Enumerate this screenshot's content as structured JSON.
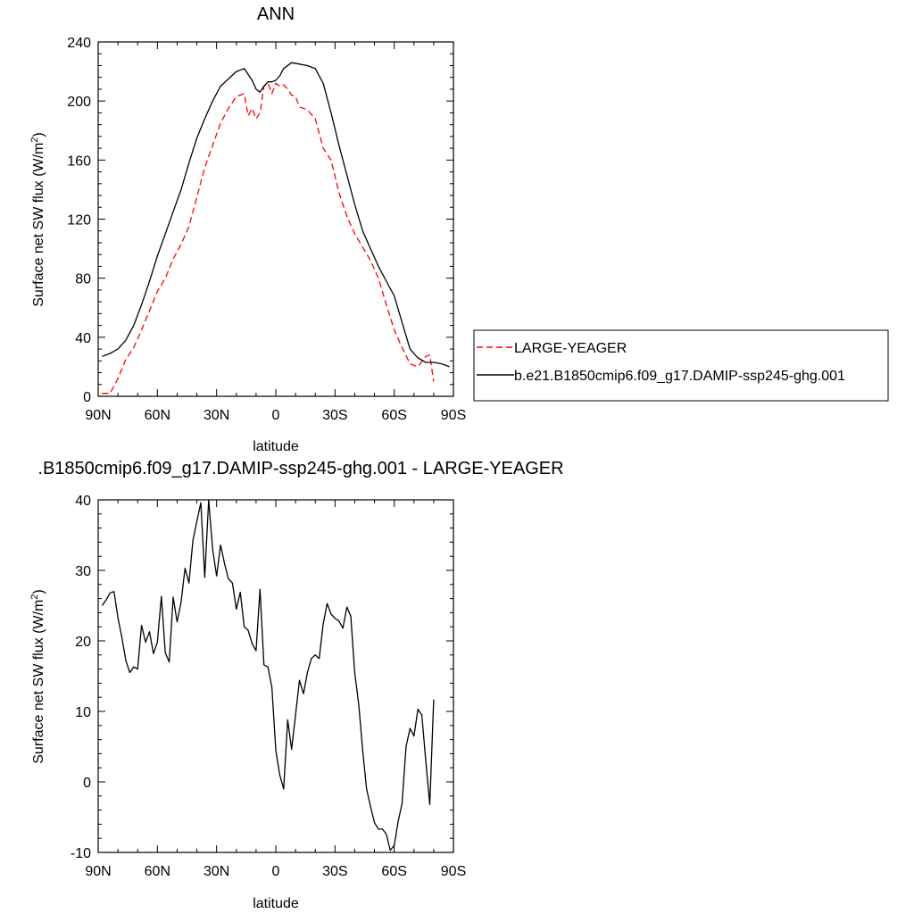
{
  "chart_data": [
    {
      "type": "line",
      "title": "ANN",
      "xlabel": "latitude",
      "ylabel": "Surface net SW flux (W/m",
      "ylabel_sup": "2",
      "ylabel_close": ")",
      "xlim": [
        90,
        -90
      ],
      "ylim": [
        0,
        240
      ],
      "x_ticks": [
        90,
        60,
        30,
        0,
        -30,
        -60,
        -90
      ],
      "x_tick_labels": [
        "90N",
        "60N",
        "30N",
        "0",
        "30S",
        "60S",
        "90S"
      ],
      "y_ticks": [
        0,
        40,
        80,
        120,
        160,
        200,
        240
      ],
      "y_tick_labels": [
        "0",
        "40",
        "80",
        "120",
        "160",
        "200",
        "240"
      ],
      "legend_position": "right",
      "series": [
        {
          "name": "LARGE-YEAGER",
          "color": "#ff0000",
          "dash": "dashed",
          "x": [
            88,
            84,
            80,
            76,
            72,
            68,
            64,
            60,
            56,
            52,
            48,
            44,
            40,
            36,
            32,
            28,
            24,
            20,
            16,
            14,
            12,
            10,
            8,
            6,
            4,
            2,
            0,
            -2,
            -4,
            -6,
            -8,
            -10,
            -12,
            -16,
            -20,
            -24,
            -28,
            -32,
            -36,
            -40,
            -44,
            -48,
            -52,
            -56,
            -60,
            -64,
            -68,
            -72,
            -76,
            -78,
            -80
          ],
          "y": [
            2,
            2,
            12,
            25,
            33,
            45,
            58,
            71,
            80,
            93,
            103,
            115,
            135,
            155,
            170,
            185,
            195,
            203,
            205,
            190,
            195,
            188,
            192,
            210,
            212,
            205,
            212,
            210,
            211,
            208,
            204,
            203,
            196,
            194,
            188,
            168,
            160,
            138,
            122,
            110,
            101,
            92,
            80,
            62,
            45,
            33,
            22,
            20,
            27,
            28,
            10
          ]
        },
        {
          "name": "b.e21.B1850cmip6.f09_g17.DAMIP-ssp245-ghg.001",
          "color": "#000000",
          "dash": "solid",
          "x": [
            88,
            84,
            80,
            76,
            72,
            68,
            64,
            60,
            56,
            52,
            48,
            44,
            40,
            36,
            32,
            28,
            24,
            20,
            16,
            12,
            10,
            8,
            6,
            4,
            2,
            0,
            -2,
            -4,
            -8,
            -12,
            -16,
            -20,
            -24,
            -28,
            -32,
            -36,
            -40,
            -44,
            -48,
            -52,
            -56,
            -60,
            -64,
            -68,
            -72,
            -76,
            -80,
            -84,
            -88
          ],
          "y": [
            27,
            29,
            32,
            38,
            48,
            62,
            78,
            95,
            110,
            125,
            140,
            158,
            175,
            188,
            200,
            210,
            215,
            220,
            222,
            214,
            208,
            206,
            210,
            213,
            213,
            214,
            217,
            222,
            226,
            225,
            224,
            222,
            212,
            192,
            170,
            150,
            130,
            112,
            100,
            88,
            78,
            68,
            50,
            32,
            26,
            23,
            23,
            22,
            20
          ]
        }
      ]
    },
    {
      "type": "line",
      "title": ".B1850cmip6.f09_g17.DAMIP-ssp245-ghg.001 - LARGE-YEAGER",
      "xlabel": "latitude",
      "ylabel": "Surface net SW flux (W/m",
      "ylabel_sup": "2",
      "ylabel_close": ")",
      "xlim": [
        90,
        -90
      ],
      "ylim": [
        -10,
        40
      ],
      "x_ticks": [
        90,
        60,
        30,
        0,
        -30,
        -60,
        -90
      ],
      "x_tick_labels": [
        "90N",
        "60N",
        "30N",
        "0",
        "30S",
        "60S",
        "90S"
      ],
      "y_ticks": [
        -10,
        0,
        10,
        20,
        30,
        40
      ],
      "y_tick_labels": [
        "-10",
        "0",
        "10",
        "20",
        "30",
        "40"
      ],
      "series": [
        {
          "color": "#000000",
          "dash": "solid",
          "x": [
            88,
            86,
            84,
            82,
            80,
            78,
            76,
            74,
            72,
            70,
            68,
            66,
            64,
            62,
            60,
            58,
            56,
            54,
            52,
            50,
            48,
            46,
            44,
            42,
            40,
            38,
            36,
            34,
            32,
            30,
            28,
            26,
            24,
            22,
            20,
            18,
            16,
            14,
            12,
            10,
            8,
            6,
            4,
            2,
            0,
            -2,
            -4,
            -6,
            -8,
            -10,
            -12,
            -14,
            -16,
            -18,
            -20,
            -22,
            -24,
            -26,
            -28,
            -30,
            -32,
            -34,
            -36,
            -38,
            -40,
            -42,
            -44,
            -46,
            -48,
            -50,
            -52,
            -54,
            -56,
            -58,
            -60,
            -62,
            -64,
            -66,
            -68,
            -70,
            -72,
            -74,
            -76,
            -78,
            -80
          ],
          "y": [
            25,
            25.8,
            26.8,
            27,
            23.3,
            20.5,
            17.2,
            15.5,
            16.3,
            16,
            22.2,
            19.8,
            21.3,
            18.2,
            19.8,
            26.3,
            18.3,
            17,
            26.2,
            22.7,
            25.5,
            30.3,
            28.2,
            34.2,
            37,
            39.6,
            29,
            40,
            33,
            29.2,
            33.6,
            31,
            28.8,
            28.2,
            24.5,
            26.9,
            22,
            21.5,
            19.6,
            18.6,
            27.3,
            16.6,
            16.3,
            13.4,
            4.5,
            1,
            -1,
            8.8,
            4.6,
            9.5,
            14.4,
            12.5,
            15.5,
            17.5,
            18,
            17.5,
            22.4,
            25.3,
            23.8,
            23.2,
            22.8,
            21.8,
            24.8,
            23.5,
            15.5,
            11,
            4.5,
            -1,
            -3.5,
            -5.8,
            -6.7,
            -6.7,
            -7.4,
            -9.7,
            -9,
            -5.6,
            -3,
            5,
            7.6,
            6.5,
            10.3,
            9.5,
            3,
            -3.2,
            11.7
          ]
        }
      ]
    }
  ]
}
